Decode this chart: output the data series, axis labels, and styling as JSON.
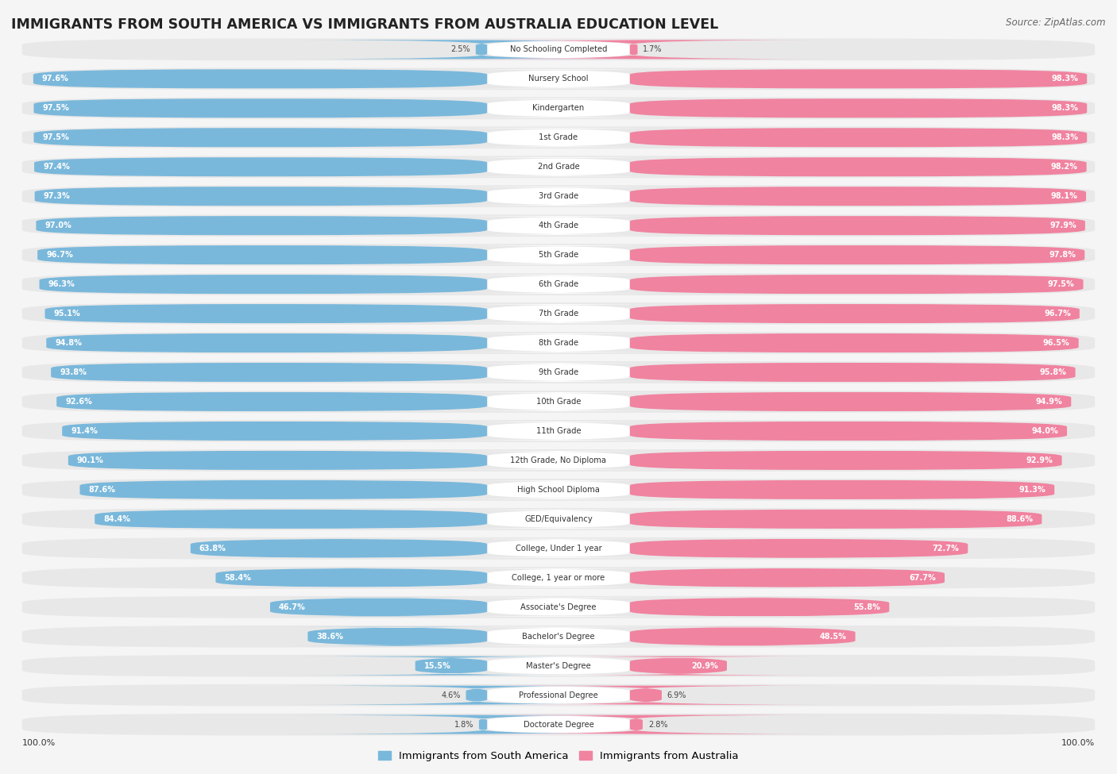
{
  "title": "IMMIGRANTS FROM SOUTH AMERICA VS IMMIGRANTS FROM AUSTRALIA EDUCATION LEVEL",
  "source": "Source: ZipAtlas.com",
  "categories": [
    "No Schooling Completed",
    "Nursery School",
    "Kindergarten",
    "1st Grade",
    "2nd Grade",
    "3rd Grade",
    "4th Grade",
    "5th Grade",
    "6th Grade",
    "7th Grade",
    "8th Grade",
    "9th Grade",
    "10th Grade",
    "11th Grade",
    "12th Grade, No Diploma",
    "High School Diploma",
    "GED/Equivalency",
    "College, Under 1 year",
    "College, 1 year or more",
    "Associate's Degree",
    "Bachelor's Degree",
    "Master's Degree",
    "Professional Degree",
    "Doctorate Degree"
  ],
  "south_america": [
    2.5,
    97.6,
    97.5,
    97.5,
    97.4,
    97.3,
    97.0,
    96.7,
    96.3,
    95.1,
    94.8,
    93.8,
    92.6,
    91.4,
    90.1,
    87.6,
    84.4,
    63.8,
    58.4,
    46.7,
    38.6,
    15.5,
    4.6,
    1.8
  ],
  "australia": [
    1.7,
    98.3,
    98.3,
    98.3,
    98.2,
    98.1,
    97.9,
    97.8,
    97.5,
    96.7,
    96.5,
    95.8,
    94.9,
    94.0,
    92.9,
    91.3,
    88.6,
    72.7,
    67.7,
    55.8,
    48.5,
    20.9,
    6.9,
    2.8
  ],
  "sa_bar_color": "#7ab8db",
  "au_bar_color": "#f083a0",
  "row_bg_color": "#e8e8e8",
  "fig_bg_color": "#f5f5f5",
  "label_box_color": "#ffffff",
  "title_fontsize": 12.5,
  "legend_sa": "Immigrants from South America",
  "legend_au": "Immigrants from Australia"
}
